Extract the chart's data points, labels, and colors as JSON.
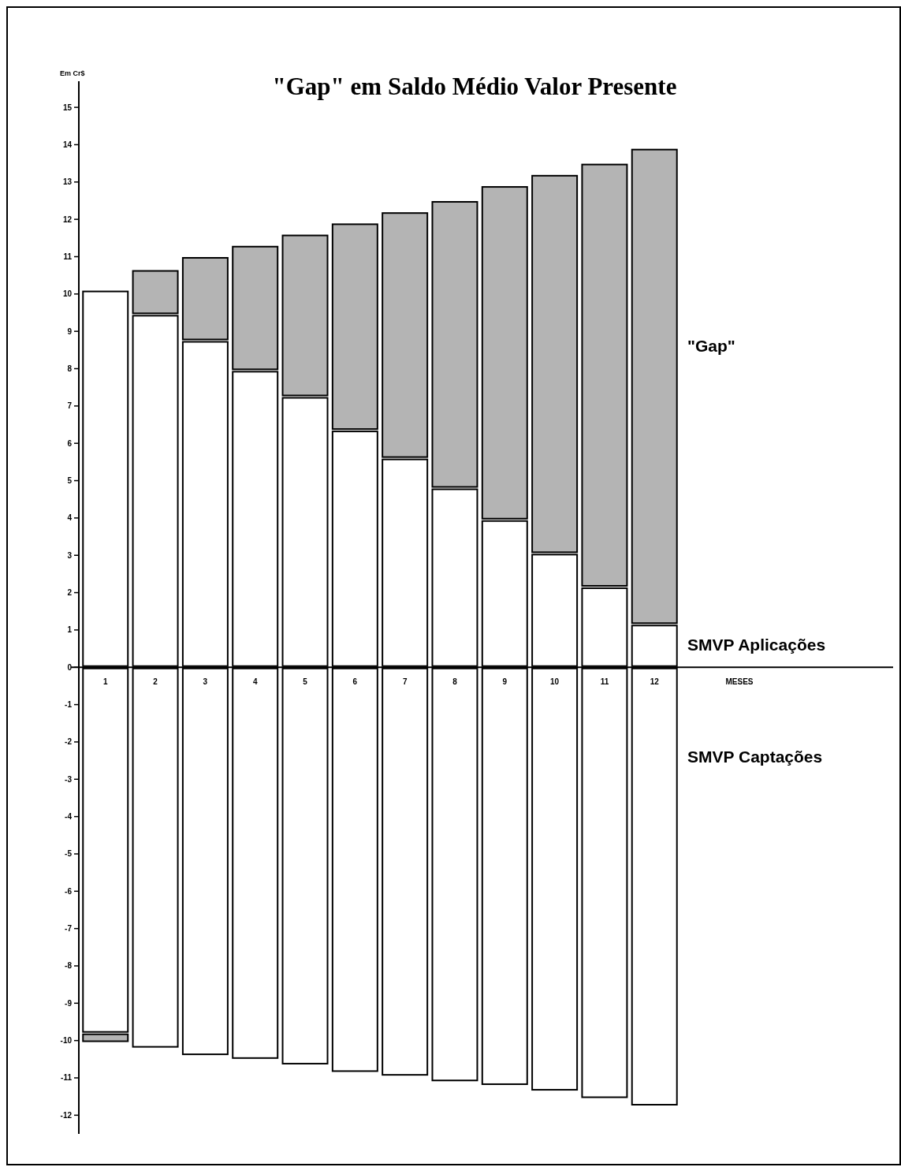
{
  "chart_data": {
    "type": "bar",
    "title": "\"Gap\" em Saldo Médio Valor Presente",
    "ylabel": "Em Cr$",
    "annotations": [
      "MESES"
    ],
    "categories": [
      "1",
      "2",
      "3",
      "4",
      "5",
      "6",
      "7",
      "8",
      "9",
      "10",
      "11",
      "12"
    ],
    "stacked": true,
    "legend": "right",
    "series": [
      {
        "name": "SMVP Aplicações",
        "color": "#ffffff",
        "values": [
          10.1,
          9.45,
          8.75,
          7.95,
          7.25,
          6.35,
          5.6,
          4.8,
          3.95,
          3.05,
          2.15,
          1.15
        ]
      },
      {
        "name": "SMVP Captações",
        "color": "#ffffff",
        "values": [
          -9.8,
          -10.2,
          -10.4,
          -10.5,
          -10.65,
          -10.85,
          -10.95,
          -11.1,
          -11.2,
          -11.35,
          -11.55,
          -11.75
        ]
      },
      {
        "name": "\"Gap\"",
        "color": "#b4b4b4",
        "values": [
          -0.25,
          1.2,
          2.25,
          3.35,
          4.35,
          5.55,
          6.6,
          7.7,
          8.95,
          10.15,
          11.35,
          12.75
        ]
      }
    ],
    "ylim": [
      -12.5,
      15.7
    ],
    "yticks": [
      -12,
      -11,
      -10,
      -9,
      -8,
      -7,
      -6,
      -5,
      -4,
      -3,
      -2,
      -1,
      0,
      1,
      2,
      3,
      4,
      5,
      6,
      7,
      8,
      9,
      10,
      11,
      12,
      13,
      14,
      15
    ]
  }
}
